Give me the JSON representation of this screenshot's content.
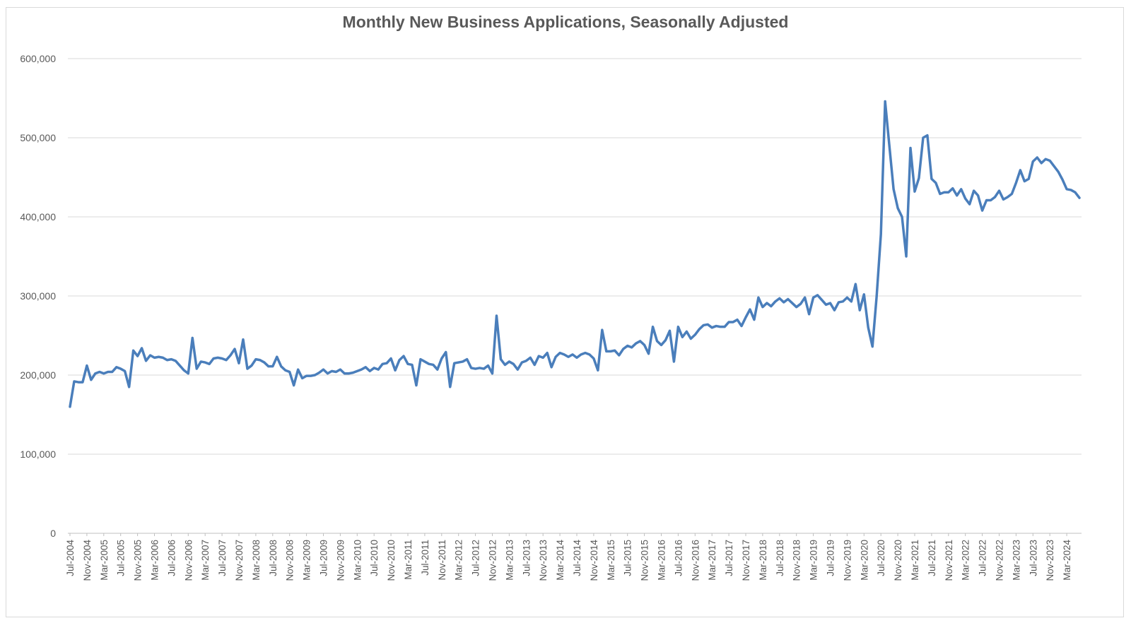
{
  "chart_data": {
    "type": "line",
    "title": "Monthly New Business Applications, Seasonally Adjusted",
    "xlabel": "",
    "ylabel": "",
    "ylim": [
      0,
      600000
    ],
    "grid": true,
    "legend": "none",
    "y_ticks": [
      "0",
      "100,000",
      "200,000",
      "300,000",
      "400,000",
      "500,000",
      "600,000"
    ],
    "x_ticks": [
      "Jul-2004",
      "Nov-2004",
      "Mar-2005",
      "Jul-2005",
      "Nov-2005",
      "Mar-2006",
      "Jul-2006",
      "Nov-2006",
      "Mar-2007",
      "Jul-2007",
      "Nov-2007",
      "Mar-2008",
      "Jul-2008",
      "Nov-2008",
      "Mar-2009",
      "Jul-2009",
      "Nov-2009",
      "Mar-2010",
      "Jul-2010",
      "Nov-2010",
      "Mar-2011",
      "Jul-2011",
      "Nov-2011",
      "Mar-2012",
      "Jul-2012",
      "Nov-2012",
      "Mar-2013",
      "Jul-2013",
      "Nov-2013",
      "Mar-2014",
      "Jul-2014",
      "Nov-2014",
      "Mar-2015",
      "Jul-2015",
      "Nov-2015",
      "Mar-2016",
      "Jul-2016",
      "Nov-2016",
      "Mar-2017",
      "Jul-2017",
      "Nov-2017",
      "Mar-2018",
      "Jul-2018",
      "Nov-2018",
      "Mar-2019",
      "Jul-2019",
      "Nov-2019",
      "Mar-2020",
      "Jul-2020",
      "Nov-2020",
      "Mar-2021",
      "Jul-2021",
      "Nov-2021",
      "Mar-2022",
      "Jul-2022",
      "Nov-2022",
      "Mar-2023",
      "Jul-2023",
      "Nov-2023",
      "Mar-2024"
    ],
    "line_color": "#4a7ebb",
    "start_month": "Jul-2004",
    "series": [
      {
        "values": [
          160000,
          192000,
          191000,
          191000,
          212000,
          194000,
          202000,
          204000,
          202000,
          204000,
          204000,
          210000,
          208000,
          205000,
          185000,
          231000,
          224000,
          234000,
          218000,
          225000,
          222000,
          223000,
          222000,
          219000,
          220000,
          218000,
          212000,
          206000,
          202000,
          247000,
          208000,
          217000,
          216000,
          214000,
          221000,
          222000,
          221000,
          219000,
          225000,
          233000,
          215000,
          245000,
          208000,
          212000,
          220000,
          219000,
          216000,
          211000,
          211000,
          223000,
          211000,
          206000,
          204000,
          187000,
          207000,
          196000,
          199000,
          199000,
          200000,
          203000,
          207000,
          202000,
          205000,
          204000,
          207000,
          202000,
          202000,
          203000,
          205000,
          207000,
          210000,
          205000,
          209000,
          207000,
          214000,
          215000,
          221000,
          206000,
          219000,
          224000,
          214000,
          213000,
          187000,
          220000,
          217000,
          214000,
          213000,
          207000,
          221000,
          229000,
          185000,
          215000,
          216000,
          217000,
          220000,
          209000,
          208000,
          209000,
          208000,
          212000,
          202000,
          275000,
          220000,
          213000,
          217000,
          214000,
          207000,
          216000,
          218000,
          222000,
          213000,
          224000,
          222000,
          228000,
          210000,
          223000,
          228000,
          226000,
          223000,
          226000,
          222000,
          226000,
          228000,
          226000,
          221000,
          206000,
          257000,
          230000,
          230000,
          231000,
          225000,
          233000,
          237000,
          235000,
          240000,
          243000,
          238000,
          227000,
          261000,
          243000,
          238000,
          244000,
          256000,
          217000,
          261000,
          248000,
          255000,
          246000,
          251000,
          258000,
          263000,
          264000,
          260000,
          262000,
          261000,
          261000,
          267000,
          267000,
          270000,
          262000,
          273000,
          283000,
          270000,
          298000,
          286000,
          291000,
          287000,
          293000,
          297000,
          292000,
          296000,
          291000,
          286000,
          290000,
          298000,
          277000,
          298000,
          301000,
          295000,
          289000,
          291000,
          282000,
          292000,
          293000,
          298000,
          293000,
          315000,
          282000,
          302000,
          260000,
          236000,
          300000,
          378000,
          546000,
          490000,
          435000,
          411000,
          400000,
          350000,
          487000,
          432000,
          449000,
          500000,
          503000,
          448000,
          443000,
          429000,
          431000,
          431000,
          436000,
          427000,
          435000,
          423000,
          416000,
          433000,
          427000,
          408000,
          421000,
          421000,
          425000,
          433000,
          422000,
          425000,
          429000,
          443000,
          459000,
          445000,
          448000,
          470000,
          475000,
          468000,
          473000,
          471000,
          464000,
          457000,
          447000,
          435000,
          434000,
          431000,
          424000
        ]
      }
    ]
  }
}
